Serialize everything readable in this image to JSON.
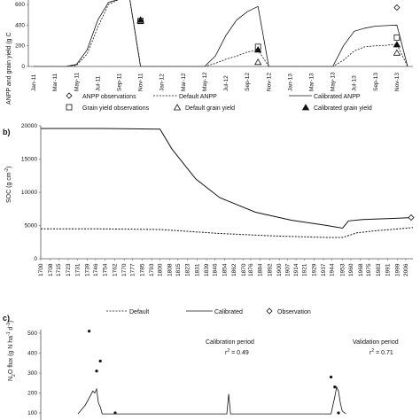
{
  "chart_data": [
    {
      "type": "line",
      "panel": "",
      "ylabel": "ANPP and grain yield (g C",
      "ylim": [
        0,
        600
      ],
      "yticks": [
        "0",
        "200",
        "400",
        "600"
      ],
      "x_ticks": [
        "Jan-11",
        "Mar-11",
        "May-11",
        "Jul-11",
        "Sep-11",
        "Nov-11",
        "Jan-12",
        "Mar-12",
        "May-12",
        "Jul-12",
        "Sep-12",
        "Nov-12",
        "Jan-13",
        "Mar-13",
        "May-13",
        "Jul-13",
        "Sep-13",
        "Nov-13"
      ],
      "series": [
        {
          "name": "Default ANPP",
          "style": "dashed",
          "x": [
            "Jan-11",
            "Apr-11",
            "May-11",
            "Jun-11",
            "Jul-11",
            "Aug-11",
            "Sep-11",
            "Oct-11",
            "Nov-11",
            "Dec-11",
            "Jan-12",
            "Mar-12",
            "May-12",
            "Jun-12",
            "Jul-12",
            "Aug-12",
            "Sep-12",
            "Oct-12",
            "Nov-12",
            "Jan-13",
            "Apr-13",
            "May-13",
            "Jun-13",
            "Jul-13",
            "Aug-13",
            "Sep-13",
            "Oct-13",
            "Nov-13",
            "Dec-13"
          ],
          "y": [
            0,
            0,
            10,
            120,
            380,
            600,
            650,
            650,
            0,
            0,
            0,
            0,
            0,
            30,
            70,
            100,
            140,
            160,
            0,
            0,
            0,
            0,
            60,
            150,
            190,
            200,
            205,
            215,
            0
          ]
        },
        {
          "name": "Calibrated ANPP",
          "style": "solid",
          "x": [
            "Jan-11",
            "Apr-11",
            "May-11",
            "Jun-11",
            "Jul-11",
            "Aug-11",
            "Sep-11",
            "Oct-11",
            "Nov-11",
            "Dec-11",
            "Jan-12",
            "Mar-12",
            "May-12",
            "Jun-12",
            "Jul-12",
            "Aug-12",
            "Sep-12",
            "Oct-12",
            "Nov-12",
            "Jan-13",
            "Apr-13",
            "May-13",
            "Jun-13",
            "Jul-13",
            "Aug-13",
            "Sep-13",
            "Oct-13",
            "Nov-13",
            "Dec-13"
          ],
          "y": [
            0,
            0,
            20,
            160,
            450,
            620,
            650,
            650,
            0,
            0,
            0,
            0,
            0,
            100,
            300,
            450,
            530,
            580,
            0,
            0,
            0,
            0,
            200,
            340,
            370,
            390,
            395,
            400,
            0
          ]
        }
      ],
      "markers": [
        {
          "name": "ANPP observations",
          "shape": "diamond",
          "x": [
            "Nov-13"
          ],
          "y": [
            570
          ]
        },
        {
          "name": "Grain yield observations",
          "shape": "square",
          "x": [
            "Nov-11",
            "Oct-12",
            "Nov-13"
          ],
          "y": [
            440,
            190,
            280
          ]
        },
        {
          "name": "Default grain yield",
          "shape": "triangle-open",
          "x": [
            "Nov-11",
            "Oct-12",
            "Nov-13"
          ],
          "y": [
            440,
            40,
            130
          ]
        },
        {
          "name": "Calibrated grain yield",
          "shape": "triangle-filled",
          "x": [
            "Nov-11",
            "Oct-12",
            "Nov-13"
          ],
          "y": [
            450,
            160,
            210
          ]
        }
      ],
      "legend": [
        "ANPP observations",
        "Default ANPP",
        "Calibrated ANPP",
        "Grain yield observations",
        "Default grain yield",
        "Calibrated grain yield"
      ]
    },
    {
      "type": "line",
      "panel": "b)",
      "ylabel": "SOC (g cm⁻²)",
      "ylabel_main": "SOC (g cm",
      "ylabel_sup": "-2",
      "ylabel_end": ")",
      "ylim": [
        0,
        20000
      ],
      "yticks": [
        "0",
        "5000",
        "10000",
        "15000",
        "20000"
      ],
      "x_ticks": [
        "1700",
        "1708",
        "1715",
        "1723",
        "1731",
        "1739",
        "1746",
        "1754",
        "1762",
        "1770",
        "1777",
        "1785",
        "1793",
        "1800",
        "1808",
        "1815",
        "1823",
        "1831",
        "1839",
        "1846",
        "1854",
        "1862",
        "1870",
        "1876",
        "1884",
        "1892",
        "1900",
        "1907",
        "1914",
        "1921",
        "1929",
        "1937",
        "1944",
        "1953",
        "1960",
        "1968",
        "1975",
        "1983",
        "1991",
        "1999",
        "2006"
      ],
      "series": [
        {
          "name": "Default",
          "style": "dashed",
          "x": [
            1700,
            1750,
            1800,
            1850,
            1900,
            1940,
            1953,
            1965,
            1980,
            2000,
            2012
          ],
          "y": [
            4500,
            4500,
            4400,
            3800,
            3400,
            3200,
            3200,
            3900,
            4200,
            4500,
            4700
          ]
        },
        {
          "name": "Calibrated",
          "style": "solid",
          "x": [
            1700,
            1750,
            1800,
            1810,
            1830,
            1850,
            1880,
            1910,
            1940,
            1953,
            1958,
            1970,
            1985,
            2000,
            2012
          ],
          "y": [
            19600,
            19600,
            19500,
            16500,
            12000,
            9200,
            7000,
            5800,
            5000,
            4600,
            5700,
            5900,
            6000,
            6100,
            6200
          ]
        }
      ],
      "markers": [
        {
          "name": "Observation",
          "shape": "diamond",
          "x": [
            2012
          ],
          "y": [
            6200
          ]
        }
      ],
      "legend": [
        "Default",
        "Calibrated",
        "Observation"
      ]
    },
    {
      "type": "line",
      "panel": "c)",
      "ylabel": "N₂O flux (g N ha⁻¹ d⁻¹)",
      "ylabel_parts": [
        "N",
        "2",
        "O flux (g N ha",
        "-1",
        " d",
        "-1",
        ")"
      ],
      "ylim": [
        100,
        500
      ],
      "yticks": [
        "100",
        "200",
        "300",
        "400",
        "500"
      ],
      "annotations": [
        {
          "text": "Calibration period",
          "r2": "r² = 0.49",
          "r2_base": "r",
          "r2_sup": "2",
          "r2_rest": " = 0.49"
        },
        {
          "text": "Validation period",
          "r2": "r² = 0.71",
          "r2_base": "r",
          "r2_sup": "2",
          "r2_rest": " = 0.71"
        }
      ],
      "observations": {
        "t": [
          0.13,
          0.15,
          0.16,
          0.2,
          0.78,
          0.79,
          0.8
        ],
        "y": [
          510,
          310,
          360,
          100,
          280,
          230,
          100
        ]
      },
      "simulated": {
        "t": [
          0.1,
          0.12,
          0.14,
          0.145,
          0.15,
          0.155,
          0.16,
          0.165,
          0.18,
          0.5,
          0.505,
          0.51,
          0.78,
          0.79,
          0.795,
          0.8,
          0.805,
          0.81,
          0.82
        ],
        "y": [
          95,
          140,
          210,
          200,
          220,
          150,
          130,
          95,
          95,
          95,
          195,
          95,
          95,
          180,
          230,
          210,
          150,
          110,
          95
        ]
      }
    }
  ]
}
